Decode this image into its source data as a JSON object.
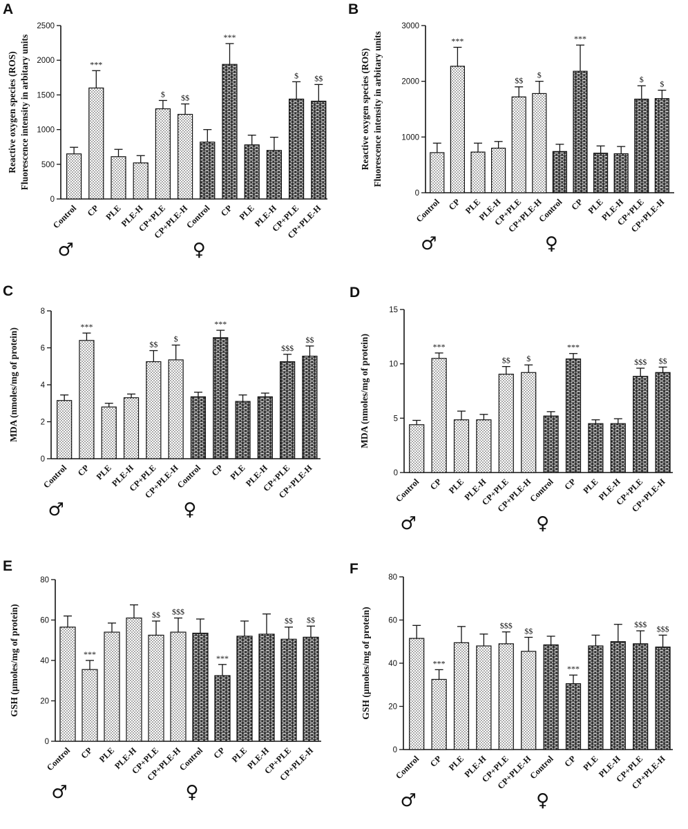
{
  "figure": {
    "sex_symbols": {
      "male": "♂",
      "female": "♀"
    },
    "colors": {
      "ink": "#111111",
      "male_fill_pattern": "dotted-light",
      "female_fill_pattern": "brick-dark"
    }
  },
  "chart_data": [
    {
      "panel": "A",
      "type": "bar",
      "ylabel": [
        "Reactive oxygen species (ROS)",
        "Fluorescence intensity in arbitary units"
      ],
      "ylim": [
        0,
        2500
      ],
      "yticks": [
        0,
        500,
        1000,
        1500,
        2000,
        2500
      ],
      "categories": [
        "Control",
        "CP",
        "PLE",
        "PLE-H",
        "CP+PLE",
        "CP+PLE-H",
        "Control",
        "CP",
        "PLE",
        "PLE-H",
        "CP+PLE",
        "CP+PLE-H"
      ],
      "groups": [
        "male",
        "male",
        "male",
        "male",
        "male",
        "male",
        "female",
        "female",
        "female",
        "female",
        "female",
        "female"
      ],
      "values": [
        650,
        1600,
        610,
        520,
        1300,
        1220,
        820,
        1940,
        780,
        700,
        1440,
        1410
      ],
      "errors": [
        95,
        250,
        105,
        105,
        120,
        150,
        180,
        300,
        140,
        190,
        250,
        240
      ],
      "significance": [
        "",
        "***",
        "",
        "",
        "$",
        "$$",
        "",
        "***",
        "",
        "",
        "$",
        "$$"
      ]
    },
    {
      "panel": "B",
      "type": "bar",
      "ylabel": [
        "Reactive oxygen species (ROS)",
        "Fluorescence intensity in arbitary units"
      ],
      "ylim": [
        0,
        3000
      ],
      "yticks": [
        0,
        1000,
        2000,
        3000
      ],
      "categories": [
        "Control",
        "CP",
        "PLE",
        "PLE-H",
        "CP+PLE",
        "CP+PLE-H",
        "Control",
        "CP",
        "PLE",
        "PLE-H",
        "CP+PLE",
        "CP+PLE-H"
      ],
      "groups": [
        "male",
        "male",
        "male",
        "male",
        "male",
        "male",
        "female",
        "female",
        "female",
        "female",
        "female",
        "female"
      ],
      "values": [
        720,
        2270,
        730,
        800,
        1720,
        1780,
        740,
        2180,
        710,
        700,
        1680,
        1690
      ],
      "errors": [
        170,
        340,
        160,
        120,
        180,
        220,
        130,
        470,
        130,
        130,
        240,
        150
      ],
      "significance": [
        "",
        "***",
        "",
        "",
        "$$",
        "$",
        "",
        "***",
        "",
        "",
        "$",
        "$"
      ]
    },
    {
      "panel": "C",
      "type": "bar",
      "ylabel": [
        "MDA (nmoles/mg of protein)"
      ],
      "ylim": [
        0,
        8
      ],
      "yticks": [
        0,
        2,
        4,
        6,
        8
      ],
      "categories": [
        "Control",
        "CP",
        "PLE",
        "PLE-H",
        "CP+PLE",
        "CP+PLE-H",
        "Control",
        "CP",
        "PLE",
        "PLE-H",
        "CP+PLE",
        "CP+PLE-H"
      ],
      "groups": [
        "male",
        "male",
        "male",
        "male",
        "male",
        "male",
        "female",
        "female",
        "female",
        "female",
        "female",
        "female"
      ],
      "values": [
        3.15,
        6.4,
        2.8,
        3.3,
        5.25,
        5.35,
        3.35,
        6.55,
        3.1,
        3.35,
        5.25,
        5.55
      ],
      "errors": [
        0.3,
        0.4,
        0.2,
        0.2,
        0.6,
        0.8,
        0.25,
        0.4,
        0.35,
        0.2,
        0.4,
        0.55
      ],
      "significance": [
        "",
        "***",
        "",
        "",
        "$$",
        "$",
        "",
        "***",
        "",
        "",
        "$$$",
        "$$"
      ]
    },
    {
      "panel": "D",
      "type": "bar",
      "ylabel": [
        "MDA (nmoles/mg of protein)"
      ],
      "ylim": [
        0,
        15
      ],
      "yticks": [
        0,
        5,
        10,
        15
      ],
      "categories": [
        "Control",
        "CP",
        "PLE",
        "PLE-H",
        "CP+PLE",
        "CP+PLE-H",
        "Control",
        "CP",
        "PLE",
        "PLE-H",
        "CP+PLE",
        "CP+PLE-H"
      ],
      "groups": [
        "male",
        "male",
        "male",
        "male",
        "male",
        "male",
        "female",
        "female",
        "female",
        "female",
        "female",
        "female"
      ],
      "values": [
        4.4,
        10.5,
        4.85,
        4.85,
        9.05,
        9.2,
        5.2,
        10.45,
        4.5,
        4.5,
        8.85,
        9.2
      ],
      "errors": [
        0.4,
        0.5,
        0.8,
        0.5,
        0.7,
        0.7,
        0.4,
        0.5,
        0.35,
        0.45,
        0.75,
        0.5
      ],
      "significance": [
        "",
        "***",
        "",
        "",
        "$$",
        "$",
        "",
        "***",
        "",
        "",
        "$$$",
        "$$"
      ]
    },
    {
      "panel": "E",
      "type": "bar",
      "ylabel": [
        "GSH (µmoles/mg of protein)"
      ],
      "ylim": [
        0,
        80
      ],
      "yticks": [
        0,
        20,
        40,
        60,
        80
      ],
      "categories": [
        "Control",
        "CP",
        "PLE",
        "PLE-H",
        "CP+PLE",
        "CP+PLE-H",
        "Control",
        "CP",
        "PLE",
        "PLE-H",
        "CP+PLE",
        "CP+PLE-H"
      ],
      "groups": [
        "male",
        "male",
        "male",
        "male",
        "male",
        "male",
        "female",
        "female",
        "female",
        "female",
        "female",
        "female"
      ],
      "values": [
        56.5,
        35.5,
        54,
        61,
        52.5,
        54,
        53.5,
        32.5,
        52,
        53,
        50.5,
        51.5
      ],
      "errors": [
        5.5,
        4.5,
        4.5,
        6.5,
        7,
        7,
        7,
        5.5,
        7.5,
        10,
        6,
        5.5
      ],
      "significance": [
        "",
        "***",
        "",
        "",
        "$$",
        "$$$",
        "",
        "***",
        "",
        "",
        "$$",
        "$$"
      ]
    },
    {
      "panel": "F",
      "type": "bar",
      "ylabel": [
        "GSH (µmoles/mg of protein)"
      ],
      "ylim": [
        0,
        80
      ],
      "yticks": [
        0,
        20,
        40,
        60,
        80
      ],
      "categories": [
        "Control",
        "CP",
        "PLE",
        "PLE-H",
        "CP+PLE",
        "CP+PLE-H",
        "Control",
        "CP",
        "PLE",
        "PLE-H",
        "CP+PLE",
        "CP+PLE-H"
      ],
      "groups": [
        "male",
        "male",
        "male",
        "male",
        "male",
        "male",
        "female",
        "female",
        "female",
        "female",
        "female",
        "female"
      ],
      "values": [
        51.5,
        32.5,
        49.5,
        48,
        49,
        45.5,
        48.5,
        30.5,
        48,
        50,
        49,
        47.5
      ],
      "errors": [
        6,
        4.5,
        7.5,
        5.5,
        5.5,
        6.5,
        4,
        4,
        5,
        8,
        6,
        5.5
      ],
      "significance": [
        "",
        "***",
        "",
        "",
        "$$$",
        "$$",
        "",
        "***",
        "",
        "",
        "$$$",
        "$$$"
      ]
    }
  ]
}
